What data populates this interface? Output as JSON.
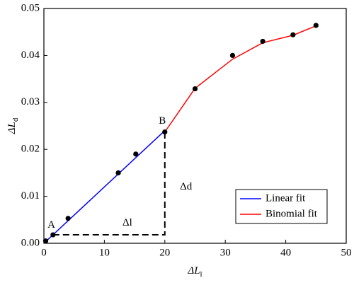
{
  "chart_data": {
    "type": "line",
    "x_label": {
      "main": "ΔL",
      "sub": "l"
    },
    "y_label": {
      "main": "ΔL",
      "sub": "d"
    },
    "xlim": [
      0,
      50
    ],
    "xticks": [
      0,
      10,
      20,
      30,
      40,
      50
    ],
    "ylim": [
      0,
      0.05
    ],
    "yticks": [
      {
        "value": 0,
        "label": "0.00"
      },
      0.01,
      0.02,
      0.03,
      0.04,
      0.05
    ],
    "points": {
      "x": [
        0.3,
        1.5,
        4,
        12.3,
        15.2,
        20,
        25,
        31.2,
        36.2,
        41.2,
        45
      ],
      "y": [
        0.0005,
        0.0018,
        0.0053,
        0.015,
        0.019,
        0.0237,
        0.0329,
        0.04,
        0.043,
        0.0444,
        0.0464
      ],
      "color": "#000000"
    },
    "series": [
      {
        "name": "Linear fit",
        "color": "#0000ff",
        "x": [
          0,
          20
        ],
        "values": [
          0,
          0.024
        ]
      },
      {
        "name": "Binomial fit",
        "color": "#ff0000",
        "x": [
          20,
          25,
          31.2,
          36.2,
          41.2,
          45
        ],
        "values": [
          0.0237,
          0.033,
          0.0392,
          0.0427,
          0.0443,
          0.0463
        ]
      }
    ],
    "guide": {
      "x": [
        1.5,
        20,
        20
      ],
      "y": [
        0.0018,
        0.0018,
        0.0237
      ]
    },
    "annotations": [
      "A",
      "B",
      "Δl",
      "Δd"
    ],
    "legend": "lower right"
  }
}
